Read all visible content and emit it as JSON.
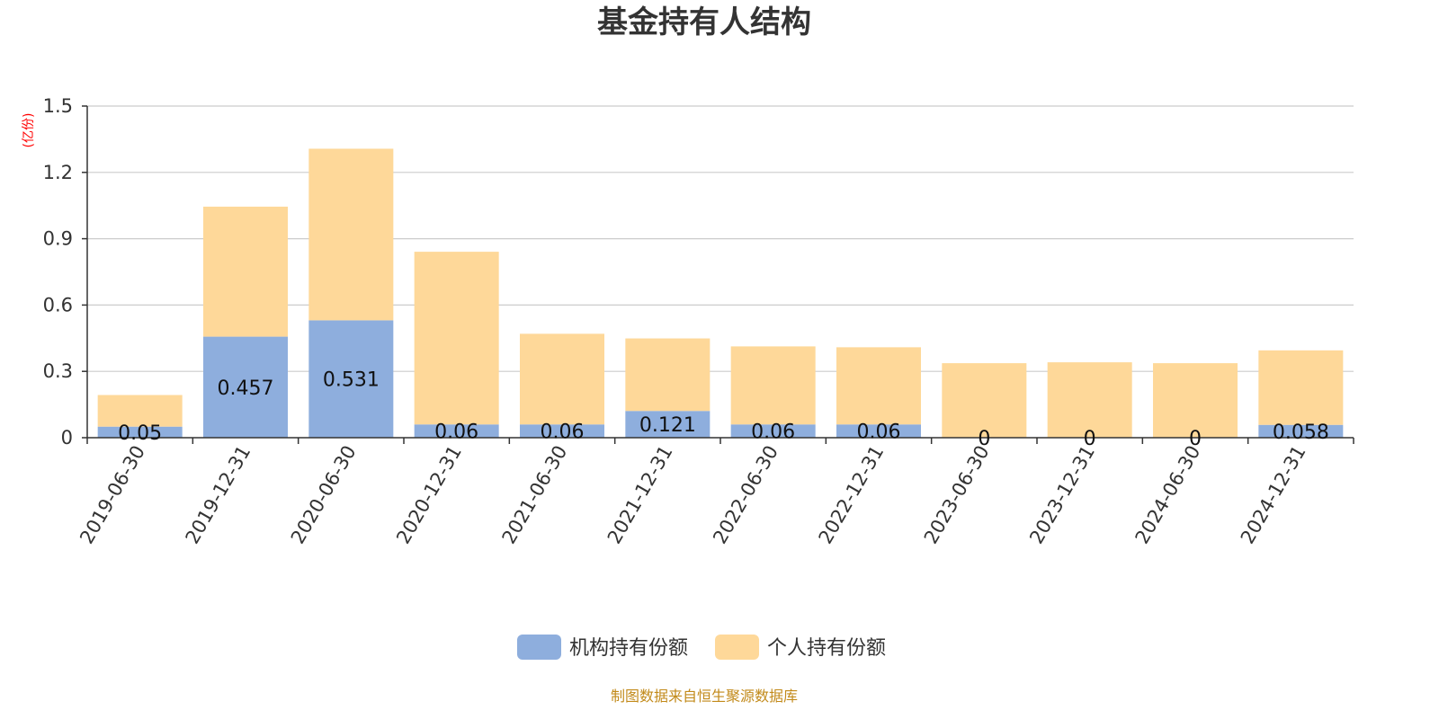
{
  "title": "基金持有人结构",
  "y_unit": "(亿份)",
  "source_note": "制图数据来自恒生聚源数据库",
  "colors": {
    "institutional": "#8eaedd",
    "individual": "#fed899",
    "grid": "#cccccc",
    "axis": "#333333",
    "unit": "#ff0000",
    "source": "#c28a1a"
  },
  "chart_data": {
    "type": "bar",
    "stacked": true,
    "categories": [
      "2019-06-30",
      "2019-12-31",
      "2020-06-30",
      "2020-12-31",
      "2021-06-30",
      "2021-12-31",
      "2022-06-30",
      "2022-12-31",
      "2023-06-30",
      "2023-12-31",
      "2024-06-30",
      "2024-12-31"
    ],
    "series": [
      {
        "name": "机构持有份额",
        "color": "#8eaedd",
        "values": [
          0.05,
          0.457,
          0.531,
          0.06,
          0.06,
          0.121,
          0.06,
          0.06,
          0,
          0,
          0,
          0.058
        ],
        "labels": [
          "0.05",
          "0.457",
          "0.531",
          "0.06",
          "0.06",
          "0.121",
          "0.06",
          "0.06",
          "0",
          "0",
          "0",
          "0.058"
        ]
      },
      {
        "name": "个人持有份额",
        "color": "#fed899",
        "values": [
          0.143,
          0.588,
          0.776,
          0.781,
          0.41,
          0.328,
          0.353,
          0.349,
          0.337,
          0.341,
          0.337,
          0.337
        ]
      }
    ],
    "ylim": [
      0,
      1.5
    ],
    "yticks": [
      "0",
      "0.3",
      "0.6",
      "0.9",
      "1.2",
      "1.5"
    ],
    "ytick_values": [
      0,
      0.3,
      0.6,
      0.9,
      1.2,
      1.5
    ],
    "grid": true,
    "legend_position": "bottom-center"
  }
}
